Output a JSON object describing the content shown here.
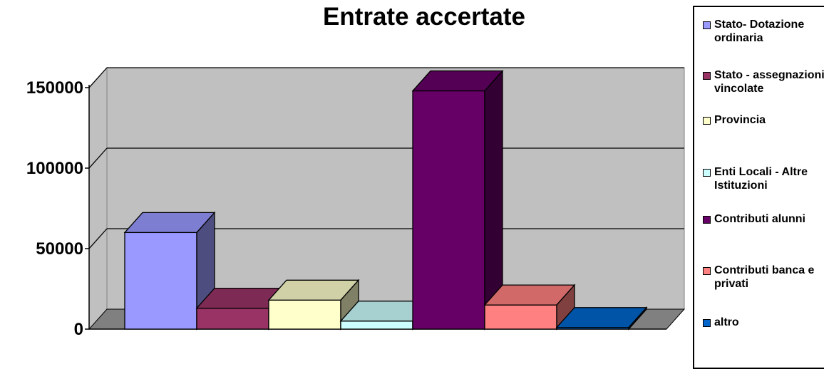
{
  "chart_data": {
    "type": "bar",
    "title": "Entrate accertate",
    "xlabel": "",
    "ylabel": "",
    "ylim": [
      0,
      150000
    ],
    "yticks": [
      "0",
      "50000",
      "100000",
      "150000"
    ],
    "grid": true,
    "legend_position": "right",
    "series": [
      {
        "name": "Stato- Dotazione ordinaria",
        "value": 60000,
        "color": "#9999ff"
      },
      {
        "name": "Stato - assegnazioni vincolate",
        "value": 13000,
        "color": "#993366"
      },
      {
        "name": "Provincia",
        "value": 18000,
        "color": "#ffffcc"
      },
      {
        "name": "Enti Locali - Altre Istituzioni",
        "value": 5000,
        "color": "#ccffff"
      },
      {
        "name": "Contributi alunni",
        "value": 148000,
        "color": "#660066"
      },
      {
        "name": "Contributi banca e privati",
        "value": 15000,
        "color": "#ff8080"
      },
      {
        "name": "altro",
        "value": 1000,
        "color": "#0066cc"
      }
    ]
  }
}
